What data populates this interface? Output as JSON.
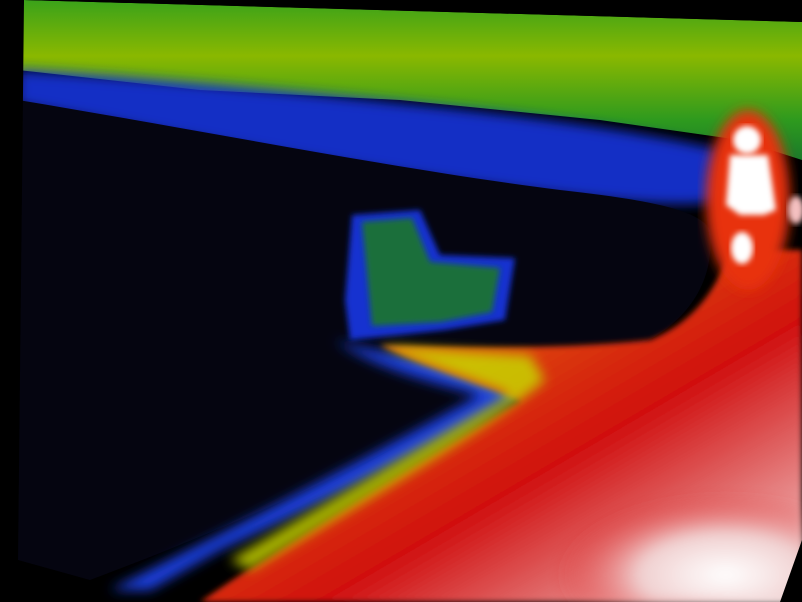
{
  "image": {
    "kind": "thermal-camera-frame",
    "palette": [
      "#000000",
      "#0a0a3a",
      "#1030d8",
      "#1a8a1a",
      "#8ab000",
      "#e8d800",
      "#e01010",
      "#ffffff"
    ],
    "background_color": "#000000",
    "subjects": [
      "person-heat-signature",
      "chair-silhouette",
      "ground-slope",
      "treeline"
    ]
  }
}
